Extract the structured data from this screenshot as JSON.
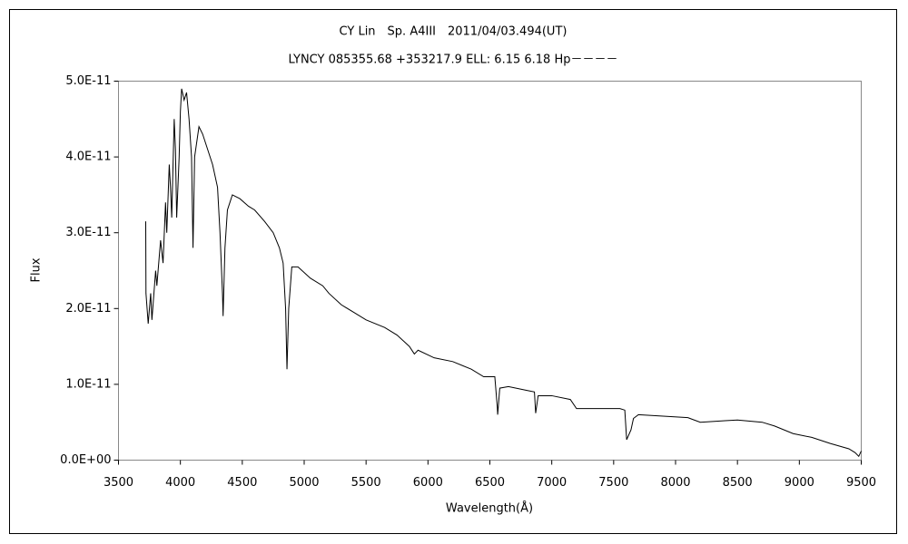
{
  "chart_data": {
    "type": "line",
    "title": "CY Lin　Sp. A4III　2011/04/03.494(UT)",
    "subtitle": "LYNCY 085355.68 +353217.9 ELL: 6.15 6.18 Hp－－－－",
    "x_label": "Wavelength(Å)",
    "y_label": "Flux",
    "x": [
      3720,
      3722,
      3740,
      3760,
      3770,
      3800,
      3810,
      3840,
      3860,
      3880,
      3890,
      3910,
      3920,
      3930,
      3950,
      3960,
      3970,
      3990,
      4000,
      4010,
      4030,
      4050,
      4070,
      4090,
      4102,
      4115,
      4150,
      4180,
      4220,
      4260,
      4300,
      4320,
      4340,
      4345,
      4360,
      4380,
      4420,
      4480,
      4550,
      4600,
      4680,
      4750,
      4800,
      4830,
      4850,
      4861,
      4875,
      4900,
      4950,
      5050,
      5150,
      5200,
      5300,
      5400,
      5500,
      5650,
      5750,
      5850,
      5890,
      5920,
      6050,
      6200,
      6350,
      6450,
      6540,
      6560,
      6563,
      6580,
      6650,
      6800,
      6860,
      6870,
      6890,
      7000,
      7150,
      7200,
      7550,
      7590,
      7605,
      7640,
      7660,
      7700,
      7900,
      8100,
      8200,
      8400,
      8500,
      8700,
      8800,
      8950,
      9100,
      9250,
      9400,
      9450,
      9480,
      9500
    ],
    "series": [
      {
        "name": "Flux",
        "color": "#000000",
        "values": [
          3.15e-11,
          2.2e-11,
          1.8e-11,
          2.2e-11,
          1.85e-11,
          2.5e-11,
          2.3e-11,
          2.9e-11,
          2.6e-11,
          3.4e-11,
          3e-11,
          3.9e-11,
          3.6e-11,
          3.2e-11,
          4.5e-11,
          4.1e-11,
          3.2e-11,
          4e-11,
          4.6e-11,
          4.9e-11,
          4.75e-11,
          4.85e-11,
          4.5e-11,
          4e-11,
          2.8e-11,
          4e-11,
          4.4e-11,
          4.3e-11,
          4.1e-11,
          3.9e-11,
          3.6e-11,
          3e-11,
          2.2e-11,
          1.9e-11,
          2.8e-11,
          3.3e-11,
          3.5e-11,
          3.45e-11,
          3.35e-11,
          3.3e-11,
          3.15e-11,
          3e-11,
          2.8e-11,
          2.6e-11,
          2e-11,
          1.2e-11,
          2e-11,
          2.55e-11,
          2.55e-11,
          2.4e-11,
          2.3e-11,
          2.2e-11,
          2.05e-11,
          1.95e-11,
          1.85e-11,
          1.75e-11,
          1.65e-11,
          1.5e-11,
          1.4e-11,
          1.45e-11,
          1.35e-11,
          1.3e-11,
          1.2e-11,
          1.1e-11,
          1.1e-11,
          7e-12,
          6e-12,
          9.5e-12,
          9.7e-12,
          9.2e-12,
          9e-12,
          6.2e-12,
          8.5e-12,
          8.5e-12,
          8e-12,
          6.8e-12,
          6.8e-12,
          6.6e-12,
          2.7e-12,
          4e-12,
          5.5e-12,
          6e-12,
          5.8e-12,
          5.6e-12,
          5e-12,
          5.2e-12,
          5.3e-12,
          5e-12,
          4.5e-12,
          3.5e-12,
          3e-12,
          2.2e-12,
          1.5e-12,
          1e-12,
          5e-13,
          1.2e-12
        ]
      }
    ],
    "xlim": [
      3500,
      9500
    ],
    "xticks": [
      3500,
      4000,
      4500,
      5000,
      5500,
      6000,
      6500,
      7000,
      7500,
      8000,
      8500,
      9000,
      9500
    ],
    "ylim": [
      0,
      5e-11
    ],
    "yticks": [
      {
        "value": 0,
        "label": "0.0E+00"
      },
      {
        "value": 1e-11,
        "label": "1.0E-11"
      },
      {
        "value": 2e-11,
        "label": "2.0E-11"
      },
      {
        "value": 3e-11,
        "label": "3.0E-11"
      },
      {
        "value": 4e-11,
        "label": "4.0E-11"
      },
      {
        "value": 5e-11,
        "label": "5.0E-11"
      }
    ],
    "grid": false
  }
}
